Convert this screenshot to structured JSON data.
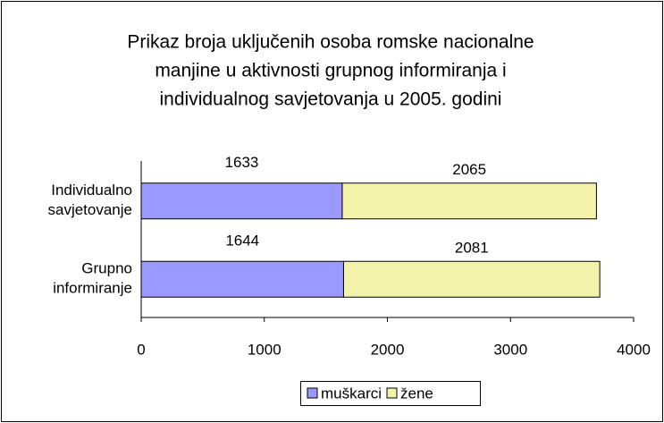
{
  "chart_data": {
    "type": "stacked_barh",
    "title": [
      "Prikaz broja uključenih  osoba romske nacionalne",
      "manjine u aktivnosti grupnog informiranja i",
      "individualnog savjetovanja u 2005. godini"
    ],
    "categories": [
      "Individualno savjetovanje",
      "Grupno informiranje"
    ],
    "series": [
      {
        "name": "muškarci",
        "color": "#9999ff",
        "values": [
          1633,
          1644
        ]
      },
      {
        "name": "žene",
        "color": "#f2f2aa",
        "values": [
          2065,
          2081
        ]
      }
    ],
    "xlim": [
      0,
      4000
    ],
    "xticks": [
      0,
      1000,
      2000,
      3000,
      4000
    ],
    "grid": false,
    "legend": "bottom"
  }
}
